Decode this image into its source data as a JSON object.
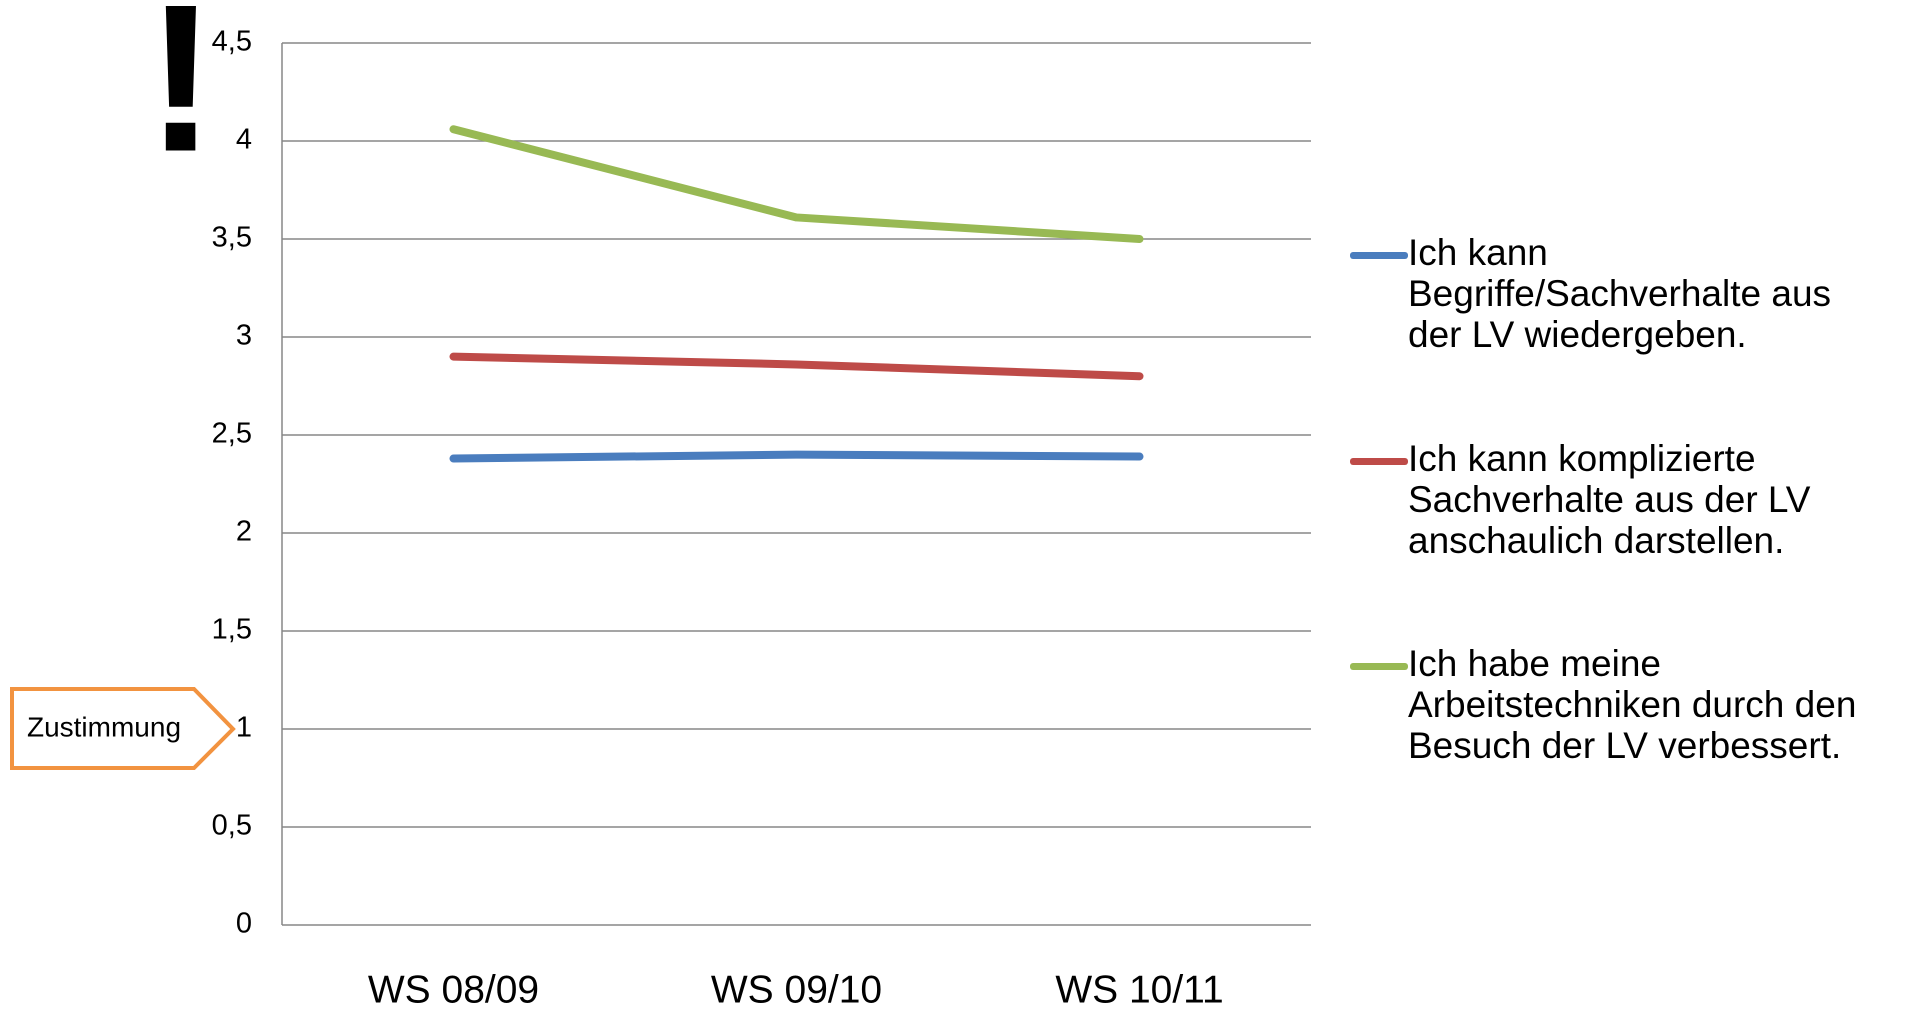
{
  "chart_data": {
    "type": "line",
    "annotation": "!",
    "ylabel": "Zustimmung",
    "categories": [
      "WS 08/09",
      "WS 09/10",
      "WS 10/11"
    ],
    "series": [
      {
        "name": "Ich kann Begriffe/Sachverhalte aus der LV wiedergeben.",
        "color": "#4a7dbe",
        "values": [
          2.38,
          2.4,
          2.39
        ]
      },
      {
        "name": "Ich kann komplizierte Sachverhalte aus der LV anschaulich darstellen.",
        "color": "#be4b48",
        "values": [
          2.9,
          2.86,
          2.8
        ]
      },
      {
        "name": "Ich habe meine Arbeitstechniken durch den Besuch der LV verbessert.",
        "color": "#98b954",
        "values": [
          4.06,
          3.61,
          3.5
        ]
      }
    ],
    "ylim": [
      0,
      4.5
    ],
    "yticks": [
      0,
      {
        "value": 0.5,
        "label": "0,5"
      },
      1,
      {
        "value": 1.5,
        "label": "1,5"
      },
      2,
      {
        "value": 2.5,
        "label": "2,5"
      },
      3,
      {
        "value": 3.5,
        "label": "3,5"
      },
      4,
      {
        "value": 4.5,
        "label": "4,5"
      }
    ],
    "grid": true,
    "legend": "right"
  }
}
